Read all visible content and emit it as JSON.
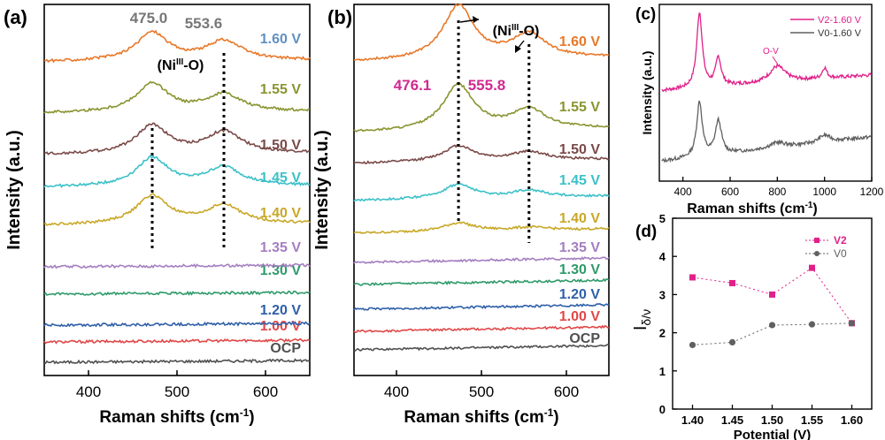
{
  "chart_data": [
    {
      "id": "a",
      "type": "line",
      "panel_label": "(a)",
      "xlabel": "Raman shifts (cm",
      "xlabel_sup": "-1",
      "xlabel_tail": ")",
      "ylabel": "Intensity (a.u.)",
      "xlim": [
        350,
        650
      ],
      "xticks": [
        400,
        500,
        600
      ],
      "peak_labels": [
        "475.0",
        "553.6"
      ],
      "peak_positions": [
        472,
        553
      ],
      "peak_label_color": "#777777",
      "species_label": {
        "pre": "(Ni",
        "sup": "III",
        "post": "-O)"
      },
      "series": [
        {
          "name": "OCP",
          "color": "#505050",
          "peaks": [
            0,
            0
          ]
        },
        {
          "name": "1.00 V",
          "color": "#e04848",
          "peaks": [
            0,
            0
          ]
        },
        {
          "name": "1.20 V",
          "color": "#2f5fa8",
          "peaks": [
            0,
            0
          ]
        },
        {
          "name": "1.30 V",
          "color": "#2e9a6a",
          "peaks": [
            0,
            0
          ]
        },
        {
          "name": "1.35 V",
          "color": "#a47ec0",
          "peaks": [
            0,
            0
          ]
        },
        {
          "name": "1.40 V",
          "color": "#c8a828",
          "peaks": [
            1.0,
            0.65
          ]
        },
        {
          "name": "1.45 V",
          "color": "#3cc0c8",
          "peaks": [
            1.0,
            0.65
          ]
        },
        {
          "name": "1.50 V",
          "color": "#7a4a48",
          "peaks": [
            1.0,
            0.75
          ]
        },
        {
          "name": "1.55 V",
          "color": "#8a9430",
          "peaks": [
            1.0,
            0.62
          ]
        },
        {
          "name": "1.60 V",
          "color": "#e8782a",
          "peaks": [
            1.0,
            0.68
          ],
          "label_color": "#6090c0"
        }
      ]
    },
    {
      "id": "b",
      "type": "line",
      "panel_label": "(b)",
      "xlabel": "Raman shifts (cm",
      "xlabel_sup": "-1",
      "xlabel_tail": ")",
      "ylabel": "Intensity (a.u.)",
      "xlim": [
        350,
        650
      ],
      "xticks": [
        400,
        500,
        600
      ],
      "peak_labels": [
        "476.1",
        "555.8"
      ],
      "peak_positions": [
        473,
        556
      ],
      "peak_label_color": "#d02a90",
      "species_label": {
        "pre": "(Ni",
        "sup": "III",
        "post": "-O)"
      },
      "series": [
        {
          "name": "OCP",
          "color": "#505050",
          "peaks": [
            0,
            0
          ]
        },
        {
          "name": "1.00 V",
          "color": "#e04848",
          "peaks": [
            0,
            0
          ]
        },
        {
          "name": "1.20 V",
          "color": "#2f5fa8",
          "peaks": [
            0,
            0
          ]
        },
        {
          "name": "1.30 V",
          "color": "#2e9a6a",
          "peaks": [
            0,
            0
          ]
        },
        {
          "name": "1.35 V",
          "color": "#a47ec0",
          "peaks": [
            0,
            0
          ]
        },
        {
          "name": "1.40 V",
          "color": "#c8a828",
          "peaks": [
            0.3,
            0.1
          ]
        },
        {
          "name": "1.45 V",
          "color": "#3cc0c8",
          "peaks": [
            0.5,
            0.25
          ]
        },
        {
          "name": "1.50 V",
          "color": "#7a4a48",
          "peaks": [
            0.55,
            0.3
          ]
        },
        {
          "name": "1.55 V",
          "color": "#8a9430",
          "peaks": [
            1.6,
            0.7
          ]
        },
        {
          "name": "1.60 V",
          "color": "#e8782a",
          "peaks": [
            1.9,
            0.85
          ]
        }
      ]
    },
    {
      "id": "c",
      "type": "line",
      "panel_label": "(c)",
      "xlabel": "Raman shifts (cm",
      "xlabel_sup": "-1",
      "xlabel_tail": ")",
      "ylabel": "Intensity (a.u.)",
      "xlim": [
        300,
        1200
      ],
      "xticks": [
        400,
        600,
        800,
        1000,
        1200
      ],
      "annotation": "O-V",
      "series": [
        {
          "name": "V2-1.60 V",
          "color": "#e0208a"
        },
        {
          "name": "V0-1.60 V",
          "color": "#606060"
        }
      ]
    },
    {
      "id": "d",
      "type": "scatter",
      "panel_label": "(d)",
      "xlabel": "Potential (V)",
      "ylabel_main": "I",
      "ylabel_sub": "δ/ν",
      "xlim": [
        1.375,
        1.625
      ],
      "ylim": [
        0,
        5
      ],
      "xticks": [
        "1.40",
        "1.45",
        "1.50",
        "1.55",
        "1.60"
      ],
      "yticks": [
        0,
        1,
        2,
        3,
        4,
        5
      ],
      "x": [
        1.4,
        1.45,
        1.5,
        1.55,
        1.6
      ],
      "series": [
        {
          "name": "V2",
          "color": "#e0208a",
          "marker": "square",
          "values": [
            3.45,
            3.3,
            3.0,
            3.7,
            2.25
          ]
        },
        {
          "name": "V0",
          "color": "#606060",
          "marker": "circle",
          "values": [
            1.68,
            1.75,
            2.2,
            2.22,
            2.25
          ]
        }
      ]
    }
  ]
}
